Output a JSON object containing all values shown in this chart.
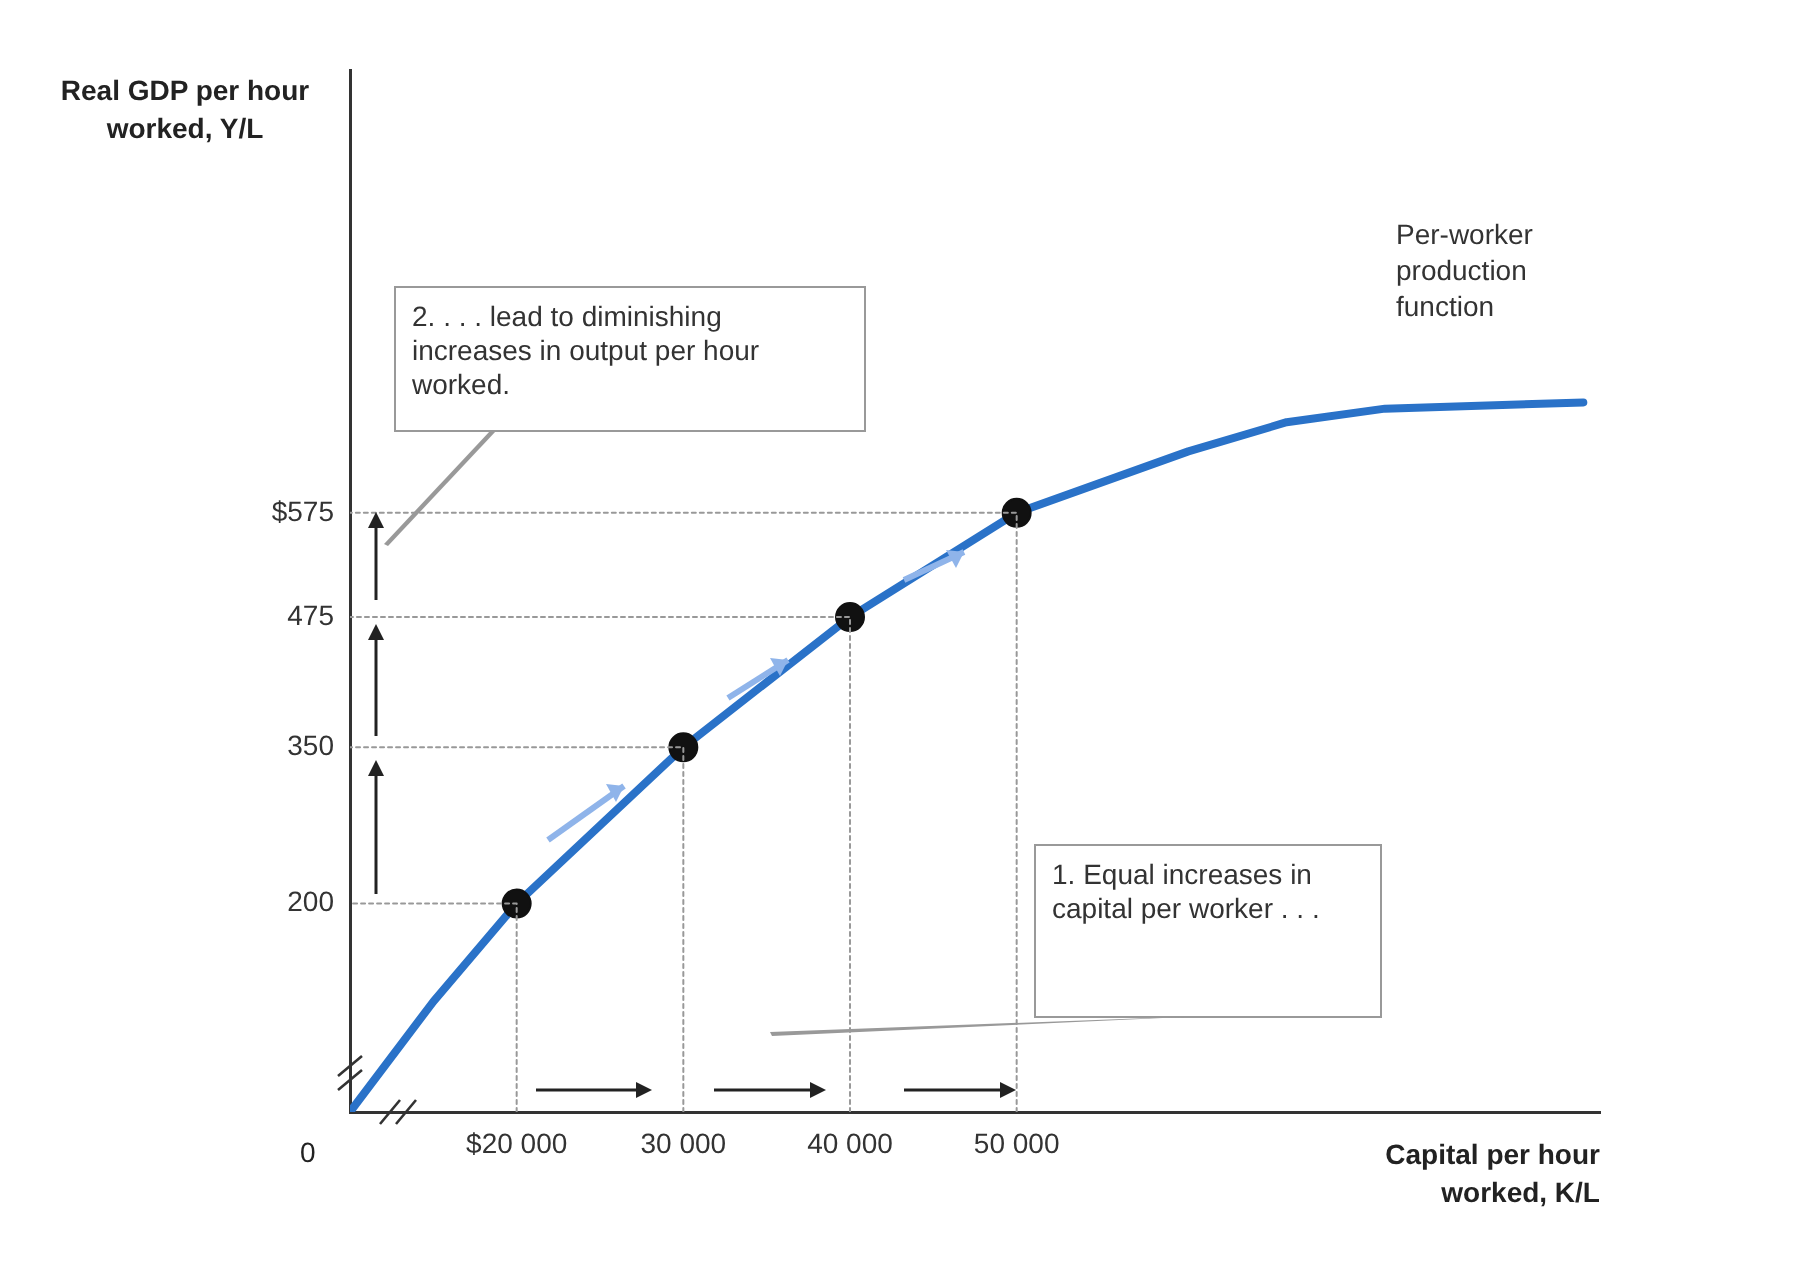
{
  "chart_data": {
    "type": "line",
    "xlabel": "Capital per hour worked, K/L",
    "ylabel": "Real GDP per hour worked, Y/L",
    "xlim": [
      10000,
      85000
    ],
    "ylim": [
      0,
      1000
    ],
    "xticks": [
      {
        "value": 20000,
        "label": "$20 000"
      },
      {
        "value": 30000,
        "label": "30 000"
      },
      {
        "value": 40000,
        "label": "40 000"
      },
      {
        "value": 50000,
        "label": "50 000"
      }
    ],
    "yticks": [
      200,
      350,
      {
        "value": 475,
        "label": "475"
      },
      {
        "value": 575,
        "label": "$575"
      }
    ],
    "grid": false,
    "legend": false,
    "series": [
      {
        "type": "line",
        "name": "Per-worker production function",
        "color": "#2a72c8",
        "marker": "none",
        "line_style": "solid",
        "x": [
          10000,
          15000,
          20000,
          30000,
          40000,
          50000,
          60300,
          66200,
          72100,
          84000
        ],
        "values": [
          0,
          106,
          200,
          350,
          475,
          575,
          634,
          662,
          675,
          681
        ]
      },
      {
        "type": "scatter",
        "color": "#111111",
        "marker": "circle",
        "x": [
          20000,
          30000,
          40000,
          50000
        ],
        "values": [
          200,
          350,
          475,
          575
        ]
      },
      {
        "type": "line",
        "color": "#999999",
        "marker": "none",
        "line_style": "dotted",
        "x": [
          20000,
          20000,
          10000
        ],
        "values": [
          0,
          200,
          200
        ]
      },
      {
        "type": "line",
        "color": "#999999",
        "marker": "none",
        "line_style": "dotted",
        "x": [
          30000,
          30000,
          10000
        ],
        "values": [
          0,
          350,
          350
        ]
      },
      {
        "type": "line",
        "color": "#999999",
        "marker": "none",
        "line_style": "dotted",
        "x": [
          40000,
          40000,
          10000
        ],
        "values": [
          0,
          475,
          475
        ]
      },
      {
        "type": "line",
        "color": "#999999",
        "marker": "none",
        "line_style": "dotted",
        "x": [
          50000,
          50000,
          10000
        ],
        "values": [
          0,
          575,
          575
        ]
      }
    ],
    "annotations": [
      "0",
      "2. . . . lead to diminishing increases in output per hour worked.",
      "1. Equal increases in capital per worker . . ."
    ]
  }
}
